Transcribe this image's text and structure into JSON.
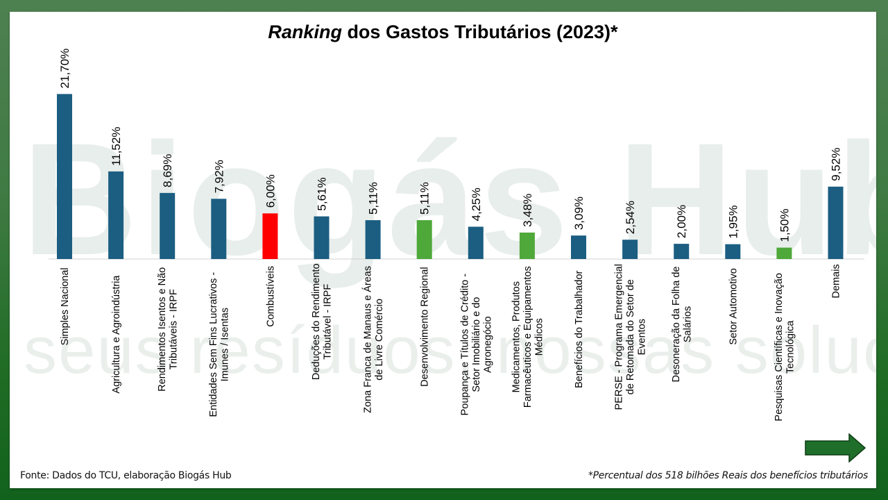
{
  "colors": {
    "blue": "#1b5e82",
    "red": "#ff0000",
    "green": "#4fa83a",
    "arrow": "#1f6f2a",
    "axis": "#d0d0d0"
  },
  "watermark": {
    "brand": "Biogás Hub",
    "tagline": "seus resíduos, nossas soluções"
  },
  "title": {
    "italic_part": "Ranking",
    "rest": " dos Gastos Tributários (2023)*"
  },
  "footer": {
    "source": "Fonte: Dados do TCU, elaboração Biogás Hub",
    "note": "*Percentual dos 518 bilhões Reais dos benefícios tributários"
  },
  "navigation": {
    "next_icon": "right-arrow-icon"
  },
  "chart_data": {
    "type": "bar",
    "title": "Ranking dos Gastos Tributários (2023)*",
    "xlabel": "",
    "ylabel": "",
    "unit": "% of R$ 518 bilhões",
    "ylim": [
      0,
      22
    ],
    "grid": false,
    "legend": "none",
    "categories": [
      [
        "Simples Nacional"
      ],
      [
        "Agricultura e Agroindústria"
      ],
      [
        "Rendimentos Isentos e Não",
        "Tributáveis - IRPF"
      ],
      [
        "Entidades Sem Fins Lucrativos -",
        "Imunes / Isentas"
      ],
      [
        "Combustíveis"
      ],
      [
        "Deduções do Rendimento",
        "Tributável - IRPF"
      ],
      [
        "Zona Franca de Manaus e Áreas",
        "de Livre Comércio"
      ],
      [
        "Desenvolvimento Regional"
      ],
      [
        "Poupança e Títulos de Crédito -",
        "Setor Imobiliário e do",
        "Agronegócio"
      ],
      [
        "Medicamentos, Produtos",
        "Farmacêuticos e Equipamentos",
        "Médicos"
      ],
      [
        "Benefícios do Trabalhador"
      ],
      [
        "PERSE - Programa Emergencial",
        "de Retomada do Setor de",
        "Eventos"
      ],
      [
        "Desoneração da Folha de",
        "Salários"
      ],
      [
        "Setor Automotivo"
      ],
      [
        "Pesquisas Científicas e Inovação",
        "Tecnológica"
      ],
      [
        "Demais"
      ]
    ],
    "values": [
      21.7,
      11.52,
      8.69,
      7.92,
      6.0,
      5.61,
      5.11,
      5.11,
      4.25,
      3.48,
      3.09,
      2.54,
      2.0,
      1.95,
      1.5,
      9.52
    ],
    "data_labels": [
      "21,70%",
      "11,52%",
      "8,69%",
      "7,92%",
      "6,00%",
      "5,61%",
      "5,11%",
      "5,11%",
      "4,25%",
      "3,48%",
      "3,09%",
      "2,54%",
      "2,00%",
      "1,95%",
      "1,50%",
      "9,52%"
    ],
    "bar_colors": [
      "blue",
      "blue",
      "blue",
      "blue",
      "red",
      "blue",
      "blue",
      "green",
      "blue",
      "green",
      "blue",
      "blue",
      "blue",
      "blue",
      "green",
      "blue"
    ]
  }
}
